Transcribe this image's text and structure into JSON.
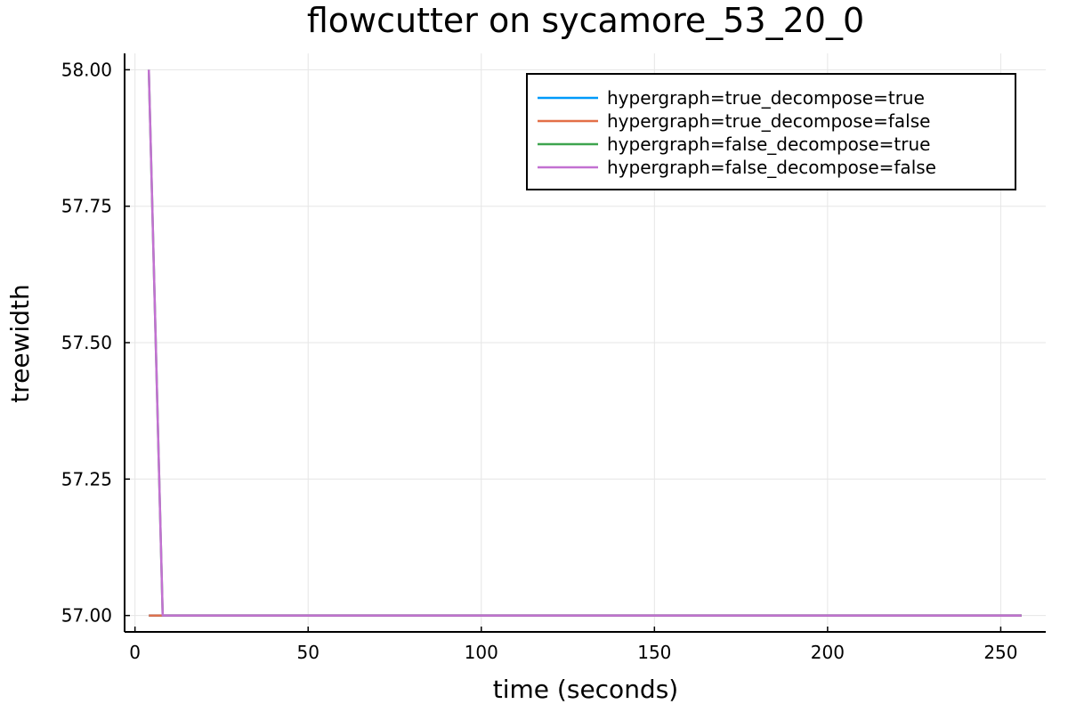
{
  "chart_data": {
    "type": "line",
    "title": "flowcutter on sycamore_53_20_0",
    "xlabel": "time (seconds)",
    "ylabel": "treewidth",
    "xlim": [
      -3,
      263
    ],
    "ylim": [
      56.97,
      58.03
    ],
    "xticks": [
      0,
      50,
      100,
      150,
      200,
      250
    ],
    "xtick_labels": [
      "0",
      "50",
      "100",
      "150",
      "200",
      "250"
    ],
    "yticks": [
      57.0,
      57.25,
      57.5,
      57.75,
      58.0
    ],
    "ytick_labels": [
      "57.00",
      "57.25",
      "57.50",
      "57.75",
      "58.00"
    ],
    "grid": true,
    "legend_position": "top-right",
    "series": [
      {
        "name": "hypergraph=true_decompose=true",
        "color": "#009AFA",
        "x": [
          4,
          8,
          256
        ],
        "y": [
          57,
          57,
          57
        ]
      },
      {
        "name": "hypergraph=true_decompose=false",
        "color": "#E36F47",
        "x": [
          4,
          8,
          256
        ],
        "y": [
          57,
          57,
          57
        ]
      },
      {
        "name": "hypergraph=false_decompose=true",
        "color": "#3EA44E",
        "x": [
          4,
          8,
          256
        ],
        "y": [
          58,
          57,
          57
        ]
      },
      {
        "name": "hypergraph=false_decompose=false",
        "color": "#C371D2",
        "x": [
          4,
          8,
          256
        ],
        "y": [
          58,
          57,
          57
        ]
      }
    ]
  }
}
